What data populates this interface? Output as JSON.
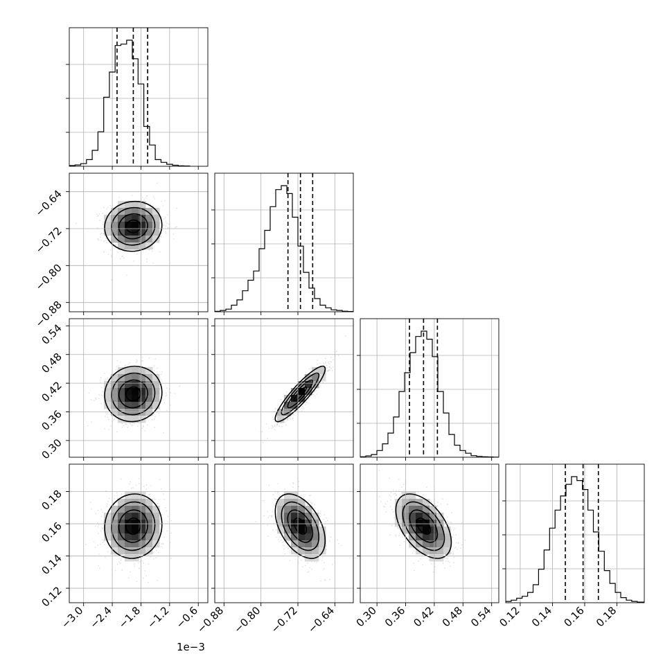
{
  "chart_data": {
    "type": "corner",
    "grid": true,
    "offset_label": "1e−3",
    "params": [
      {
        "range": [
          -3.3,
          -0.4
        ],
        "ticks": [
          -3.0,
          -2.4,
          -1.8,
          -1.2,
          -0.6
        ],
        "tick_labels": [
          "−3.0",
          "−2.4",
          "−1.8",
          "−1.2",
          "−0.6"
        ],
        "quantiles": [
          -2.3,
          -1.96,
          -1.66
        ],
        "hist_edges": [
          -3.3,
          -3.18,
          -3.06,
          -2.94,
          -2.82,
          -2.7,
          -2.58,
          -2.46,
          -2.34,
          -2.22,
          -2.1,
          -1.98,
          -1.86,
          -1.74,
          -1.62,
          -1.5,
          -1.38,
          -1.26,
          -1.14,
          -1.02,
          -0.9,
          -0.78
        ],
        "hist_counts": [
          0.005,
          0.01,
          0.02,
          0.05,
          0.12,
          0.26,
          0.52,
          0.71,
          0.91,
          0.92,
          0.95,
          0.81,
          0.62,
          0.3,
          0.16,
          0.05,
          0.03,
          0.015,
          0.008,
          0.003,
          0.002
        ],
        "mean": -1.96,
        "sd": 0.3
      },
      {
        "range": [
          -0.9,
          -0.6
        ],
        "ticks": [
          -0.88,
          -0.8,
          -0.72,
          -0.64
        ],
        "tick_labels": [
          "−0.88",
          "−0.80",
          "−0.72",
          "−0.64"
        ],
        "quantiles": [
          -0.7415,
          -0.7145,
          -0.688
        ],
        "hist_edges": [
          -0.9,
          -0.888,
          -0.876,
          -0.864,
          -0.852,
          -0.84,
          -0.828,
          -0.816,
          -0.804,
          -0.792,
          -0.78,
          -0.768,
          -0.756,
          -0.744,
          -0.732,
          -0.72,
          -0.708,
          -0.696,
          -0.684,
          -0.672,
          -0.66,
          -0.648,
          -0.636,
          -0.624,
          -0.612,
          -0.6
        ],
        "hist_counts": [
          0.003,
          0.01,
          0.02,
          0.05,
          0.09,
          0.16,
          0.24,
          0.31,
          0.48,
          0.62,
          0.8,
          0.93,
          0.96,
          0.9,
          0.72,
          0.5,
          0.3,
          0.18,
          0.1,
          0.05,
          0.03,
          0.015,
          0.01,
          0.004,
          0.002
        ],
        "mean": -0.715,
        "sd": 0.027
      },
      {
        "range": [
          0.265,
          0.555
        ],
        "ticks": [
          0.3,
          0.36,
          0.42,
          0.48,
          0.54
        ],
        "tick_labels": [
          "0.30",
          "0.36",
          "0.42",
          "0.48",
          "0.54"
        ],
        "quantiles": [
          0.368,
          0.3975,
          0.4265
        ],
        "hist_edges": [
          0.265,
          0.2766,
          0.2882,
          0.2998,
          0.3114,
          0.323,
          0.3346,
          0.3462,
          0.3578,
          0.3694,
          0.381,
          0.3926,
          0.4042,
          0.4158,
          0.4274,
          0.439,
          0.4506,
          0.4622,
          0.4738,
          0.4854,
          0.497,
          0.5086,
          0.5202,
          0.5318,
          0.5434,
          0.555
        ],
        "hist_counts": [
          0.003,
          0.01,
          0.02,
          0.05,
          0.1,
          0.18,
          0.3,
          0.49,
          0.63,
          0.78,
          0.9,
          0.94,
          0.88,
          0.75,
          0.49,
          0.33,
          0.17,
          0.09,
          0.05,
          0.03,
          0.012,
          0.006,
          0.003,
          0.002,
          0.001
        ],
        "mean": 0.3975,
        "sd": 0.029
      },
      {
        "range": [
          0.111,
          0.197
        ],
        "ticks": [
          0.12,
          0.14,
          0.16,
          0.18
        ],
        "tick_labels": [
          "0.12",
          "0.14",
          "0.16",
          "0.18"
        ],
        "quantiles": [
          0.148,
          0.159,
          0.1685
        ],
        "hist_edges": [
          0.111,
          0.1144,
          0.1178,
          0.1212,
          0.1246,
          0.128,
          0.1314,
          0.1348,
          0.1382,
          0.1416,
          0.145,
          0.1484,
          0.1518,
          0.1552,
          0.1586,
          0.162,
          0.1654,
          0.1688,
          0.1722,
          0.1756,
          0.179,
          0.1824,
          0.1858,
          0.1892,
          0.1926,
          0.197
        ],
        "hist_counts": [
          0.01,
          0.02,
          0.035,
          0.05,
          0.08,
          0.14,
          0.26,
          0.41,
          0.58,
          0.72,
          0.83,
          0.92,
          0.98,
          0.95,
          0.88,
          0.72,
          0.55,
          0.4,
          0.25,
          0.15,
          0.08,
          0.04,
          0.02,
          0.01,
          0.005
        ],
        "mean": 0.1585,
        "sd": 0.01
      }
    ],
    "correlations": [
      [
        1.0,
        0.05,
        0.05,
        0.05
      ],
      [
        0.05,
        1.0,
        0.9,
        -0.45
      ],
      [
        0.05,
        0.9,
        1.0,
        -0.5
      ],
      [
        0.05,
        -0.45,
        -0.5,
        1.0
      ]
    ],
    "contour_levels_sigma": [
      0.5,
      1.0,
      1.5,
      2.0
    ]
  }
}
